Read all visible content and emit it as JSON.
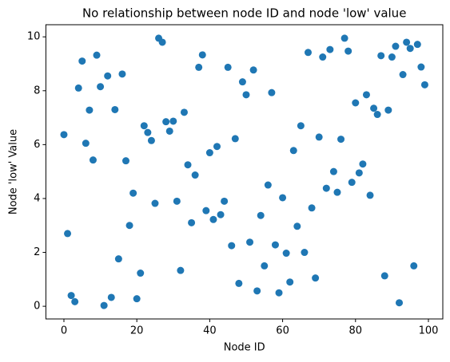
{
  "chart_data": {
    "type": "scatter",
    "title": "No relationship between node ID and node 'low' value",
    "x_label": "Node ID",
    "y_label": "Node 'low' Value",
    "color": "#1f77b4",
    "x": [
      0,
      1,
      2,
      3,
      4,
      5,
      6,
      7,
      8,
      9,
      10,
      11,
      12,
      13,
      14,
      15,
      16,
      17,
      18,
      19,
      20,
      21,
      22,
      23,
      24,
      25,
      26,
      27,
      28,
      29,
      30,
      31,
      32,
      33,
      34,
      35,
      36,
      37,
      38,
      39,
      40,
      41,
      42,
      43,
      44,
      45,
      46,
      47,
      48,
      49,
      50,
      51,
      52,
      53,
      54,
      55,
      56,
      57,
      58,
      59,
      60,
      61,
      62,
      63,
      64,
      65,
      66,
      67,
      68,
      69,
      70,
      71,
      72,
      73,
      74,
      75,
      76,
      77,
      78,
      79,
      80,
      81,
      82,
      83,
      84,
      85,
      86,
      87,
      88,
      89,
      90,
      91,
      92,
      93,
      94,
      95,
      96,
      97,
      98,
      99
    ],
    "values": [
      6.37,
      2.7,
      0.4,
      0.17,
      8.1,
      9.1,
      6.05,
      7.28,
      5.43,
      9.32,
      8.15,
      0.03,
      8.55,
      0.33,
      7.3,
      1.76,
      8.62,
      5.4,
      3.0,
      4.2,
      0.28,
      1.23,
      6.7,
      6.45,
      6.15,
      3.82,
      9.95,
      9.8,
      6.85,
      6.5,
      6.87,
      3.9,
      1.33,
      7.2,
      5.25,
      3.1,
      4.87,
      8.87,
      9.33,
      3.55,
      5.7,
      3.22,
      5.93,
      3.4,
      3.9,
      8.87,
      2.25,
      6.22,
      0.85,
      8.33,
      7.85,
      2.38,
      8.77,
      0.57,
      3.37,
      1.5,
      4.5,
      7.93,
      2.28,
      0.5,
      4.03,
      1.97,
      0.9,
      5.78,
      2.97,
      6.7,
      2.0,
      9.42,
      3.65,
      1.05,
      6.28,
      9.25,
      4.38,
      9.53,
      5.0,
      4.23,
      6.2,
      9.95,
      9.47,
      4.6,
      7.55,
      4.95,
      5.28,
      7.85,
      4.12,
      7.35,
      7.12,
      9.3,
      1.13,
      7.28,
      9.25,
      9.65,
      0.13,
      8.6,
      9.8,
      9.57,
      1.5,
      9.72,
      8.88,
      8.22
    ],
    "xlim": [
      -4.95,
      103.95
    ],
    "xticks": [
      0,
      20,
      40,
      60,
      80,
      100
    ],
    "ylim": [
      -0.47,
      10.45
    ],
    "yticks": [
      0,
      2,
      4,
      6,
      8,
      10
    ]
  }
}
